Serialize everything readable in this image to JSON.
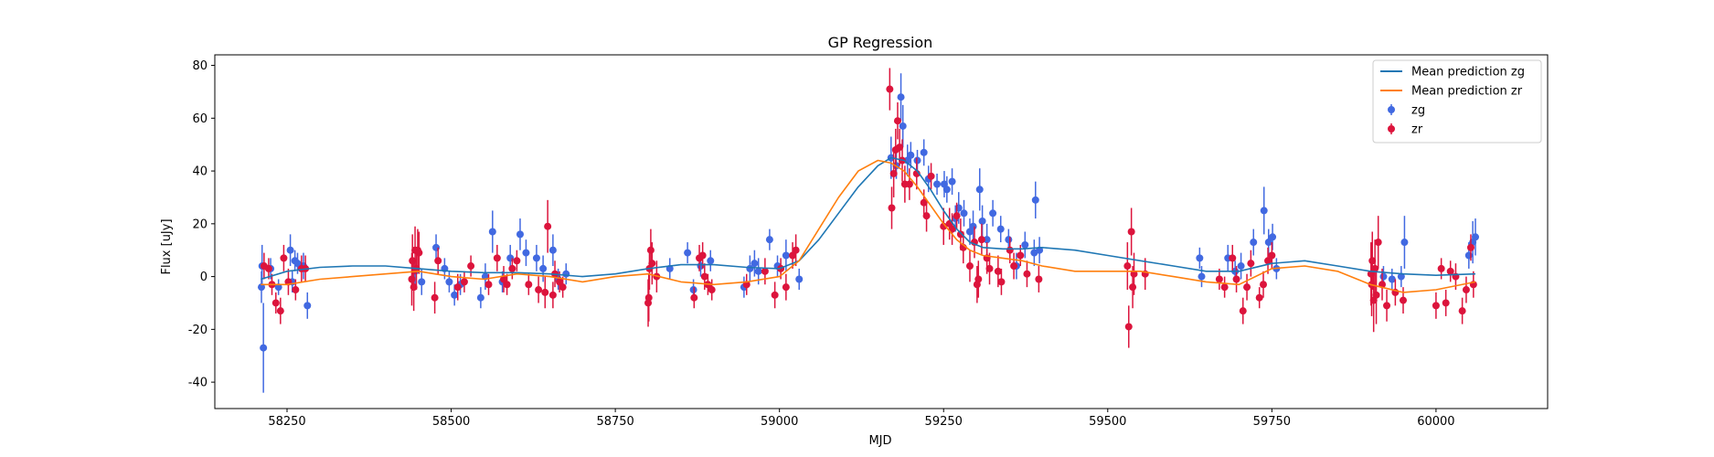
{
  "chart_data": {
    "type": "scatter",
    "title": "GP Regression",
    "xlabel": "MJD",
    "ylabel": "Flux [uJy]",
    "xlim": [
      58140,
      60170
    ],
    "ylim": [
      -50,
      84
    ],
    "xticks": [
      58250,
      58500,
      58750,
      59000,
      59250,
      59500,
      59750,
      60000
    ],
    "yticks": [
      -40,
      -20,
      0,
      20,
      40,
      60,
      80
    ],
    "legend_position": "top-right",
    "colors": {
      "zg_line": "#1f77b4",
      "zr_line": "#ff7f0e",
      "zg_points": "#4169e1",
      "zr_points": "#dc143c"
    },
    "lines": [
      {
        "name": "Mean prediction zg",
        "x": [
          58210,
          58250,
          58300,
          58350,
          58400,
          58450,
          58500,
          58550,
          58600,
          58650,
          58700,
          58750,
          58800,
          58850,
          58900,
          58950,
          59000,
          59030,
          59060,
          59090,
          59120,
          59150,
          59170,
          59190,
          59210,
          59230,
          59250,
          59270,
          59290,
          59310,
          59340,
          59370,
          59400,
          59450,
          59500,
          59550,
          59600,
          59650,
          59700,
          59750,
          59800,
          59850,
          59900,
          59950,
          60000,
          60060
        ],
        "y": [
          -1,
          2,
          3.5,
          4,
          4,
          3,
          2,
          1.5,
          1.5,
          1,
          0,
          1,
          3,
          4.5,
          4.5,
          3.5,
          3,
          6,
          14,
          24,
          34,
          42,
          45,
          44,
          40,
          33,
          25,
          18,
          13,
          11,
          10.5,
          10.5,
          11,
          10,
          8,
          6,
          4,
          2,
          2,
          5,
          6,
          4,
          2,
          1,
          0.5,
          1
        ]
      },
      {
        "name": "Mean prediction zr",
        "x": [
          58210,
          58250,
          58300,
          58350,
          58400,
          58450,
          58500,
          58550,
          58600,
          58650,
          58700,
          58750,
          58800,
          58850,
          58900,
          58950,
          59000,
          59030,
          59060,
          59090,
          59120,
          59150,
          59170,
          59190,
          59210,
          59230,
          59250,
          59270,
          59290,
          59310,
          59340,
          59370,
          59400,
          59450,
          59500,
          59550,
          59600,
          59650,
          59700,
          59750,
          59800,
          59850,
          59900,
          59950,
          60000,
          60060
        ],
        "y": [
          -3,
          -3,
          -1,
          0,
          1,
          2,
          0,
          -1,
          1,
          0,
          -2,
          0,
          1,
          -2,
          -3,
          -2,
          0,
          6,
          18,
          30,
          40,
          44,
          43,
          40,
          34,
          27,
          20,
          14,
          10,
          8,
          7,
          6,
          4,
          2,
          2,
          2,
          0,
          -2,
          -3,
          3,
          4,
          2,
          -3,
          -6,
          -5,
          -2
        ]
      }
    ],
    "series": [
      {
        "name": "zg",
        "points": [
          [
            58211,
            -4,
            6
          ],
          [
            58212,
            4,
            8
          ],
          [
            58214,
            -27,
            17
          ],
          [
            58225,
            3,
            4
          ],
          [
            58237,
            -4,
            3
          ],
          [
            58255,
            10,
            6
          ],
          [
            58258,
            -2,
            4
          ],
          [
            58262,
            6,
            4
          ],
          [
            58266,
            5,
            4
          ],
          [
            58275,
            4,
            5
          ],
          [
            58281,
            -11,
            5
          ],
          [
            58445,
            2,
            5
          ],
          [
            58455,
            -2,
            5
          ],
          [
            58477,
            11,
            5
          ],
          [
            58490,
            3,
            4
          ],
          [
            58497,
            -2,
            4
          ],
          [
            58505,
            -7,
            4
          ],
          [
            58514,
            -3,
            4
          ],
          [
            58545,
            -8,
            4
          ],
          [
            58552,
            0,
            5
          ],
          [
            58563,
            17,
            8
          ],
          [
            58578,
            -2,
            4
          ],
          [
            58590,
            7,
            5
          ],
          [
            58605,
            16,
            6
          ],
          [
            58614,
            9,
            5
          ],
          [
            58630,
            7,
            5
          ],
          [
            58640,
            3,
            5
          ],
          [
            58655,
            10,
            6
          ],
          [
            58663,
            -1,
            4
          ],
          [
            58675,
            1,
            4
          ],
          [
            58833,
            3,
            4
          ],
          [
            58860,
            9,
            4
          ],
          [
            58869,
            -5,
            4
          ],
          [
            58880,
            4,
            4
          ],
          [
            58895,
            6,
            4
          ],
          [
            58946,
            -4,
            4
          ],
          [
            58955,
            3,
            5
          ],
          [
            58962,
            5,
            5
          ],
          [
            58968,
            2,
            5
          ],
          [
            58985,
            14,
            4
          ],
          [
            58997,
            4,
            4
          ],
          [
            59010,
            8,
            6
          ],
          [
            59030,
            -1,
            4
          ],
          [
            59170,
            45,
            8
          ],
          [
            59178,
            42,
            5
          ],
          [
            59185,
            68,
            9
          ],
          [
            59188,
            57,
            8
          ],
          [
            59195,
            44,
            6
          ],
          [
            59200,
            46,
            5
          ],
          [
            59210,
            44,
            4
          ],
          [
            59220,
            47,
            5
          ],
          [
            59227,
            37,
            5
          ],
          [
            59240,
            35,
            4
          ],
          [
            59251,
            35,
            5
          ],
          [
            59255,
            33,
            5
          ],
          [
            59263,
            36,
            5
          ],
          [
            59268,
            22,
            5
          ],
          [
            59273,
            26,
            6
          ],
          [
            59281,
            24,
            5
          ],
          [
            59290,
            17,
            5
          ],
          [
            59295,
            19,
            6
          ],
          [
            59305,
            33,
            8
          ],
          [
            59309,
            21,
            6
          ],
          [
            59316,
            14,
            6
          ],
          [
            59325,
            24,
            5
          ],
          [
            59337,
            18,
            5
          ],
          [
            59349,
            14,
            4
          ],
          [
            59361,
            4,
            5
          ],
          [
            59374,
            12,
            5
          ],
          [
            59388,
            9,
            5
          ],
          [
            59390,
            29,
            7
          ],
          [
            59396,
            10,
            5
          ],
          [
            59640,
            7,
            4
          ],
          [
            59643,
            0,
            4
          ],
          [
            59683,
            7,
            5
          ],
          [
            59694,
            2,
            4
          ],
          [
            59703,
            4,
            5
          ],
          [
            59722,
            13,
            5
          ],
          [
            59738,
            25,
            9
          ],
          [
            59745,
            13,
            5
          ],
          [
            59751,
            15,
            5
          ],
          [
            59757,
            3,
            4
          ],
          [
            59920,
            0,
            4
          ],
          [
            59933,
            -1,
            4
          ],
          [
            59947,
            0,
            4
          ],
          [
            59952,
            13,
            10
          ],
          [
            60050,
            8,
            5
          ],
          [
            60056,
            13,
            8
          ],
          [
            60060,
            15,
            7
          ]
        ]
      },
      {
        "name": "zr",
        "points": [
          [
            58215,
            4,
            5
          ],
          [
            58222,
            3,
            4
          ],
          [
            58227,
            -3,
            4
          ],
          [
            58233,
            -10,
            4
          ],
          [
            58240,
            -13,
            5
          ],
          [
            58245,
            7,
            5
          ],
          [
            58252,
            -2,
            5
          ],
          [
            58263,
            -5,
            4
          ],
          [
            58272,
            3,
            5
          ],
          [
            58278,
            3,
            5
          ],
          [
            58440,
            -1,
            10
          ],
          [
            58441,
            6,
            10
          ],
          [
            58443,
            -4,
            9
          ],
          [
            58445,
            10,
            9
          ],
          [
            58447,
            3,
            8
          ],
          [
            58449,
            10,
            8
          ],
          [
            58451,
            9,
            8
          ],
          [
            58475,
            -8,
            6
          ],
          [
            58480,
            6,
            5
          ],
          [
            58510,
            -4,
            5
          ],
          [
            58520,
            -2,
            4
          ],
          [
            58530,
            4,
            4
          ],
          [
            58557,
            -3,
            4
          ],
          [
            58570,
            7,
            5
          ],
          [
            58580,
            -1,
            5
          ],
          [
            58585,
            -3,
            4
          ],
          [
            58593,
            3,
            4
          ],
          [
            58600,
            6,
            4
          ],
          [
            58618,
            -3,
            4
          ],
          [
            58633,
            -5,
            5
          ],
          [
            58643,
            -6,
            6
          ],
          [
            58647,
            19,
            10
          ],
          [
            58655,
            -7,
            5
          ],
          [
            58658,
            1,
            5
          ],
          [
            58665,
            -2,
            4
          ],
          [
            58670,
            -4,
            4
          ],
          [
            58800,
            -10,
            9
          ],
          [
            58801,
            -8,
            9
          ],
          [
            58802,
            3,
            8
          ],
          [
            58804,
            10,
            8
          ],
          [
            58806,
            5,
            8
          ],
          [
            58813,
            0,
            6
          ],
          [
            58870,
            -8,
            4
          ],
          [
            58878,
            7,
            5
          ],
          [
            58883,
            8,
            5
          ],
          [
            58886,
            0,
            5
          ],
          [
            58891,
            -3,
            4
          ],
          [
            58897,
            -5,
            4
          ],
          [
            58950,
            -3,
            4
          ],
          [
            58978,
            2,
            5
          ],
          [
            58993,
            -7,
            5
          ],
          [
            59002,
            3,
            4
          ],
          [
            59010,
            -4,
            5
          ],
          [
            59020,
            8,
            5
          ],
          [
            59025,
            10,
            6
          ],
          [
            59168,
            71,
            8
          ],
          [
            59171,
            26,
            8
          ],
          [
            59174,
            39,
            9
          ],
          [
            59177,
            48,
            8
          ],
          [
            59180,
            59,
            7
          ],
          [
            59183,
            49,
            7
          ],
          [
            59187,
            44,
            8
          ],
          [
            59191,
            35,
            7
          ],
          [
            59198,
            35,
            6
          ],
          [
            59209,
            39,
            6
          ],
          [
            59220,
            28,
            5
          ],
          [
            59224,
            23,
            6
          ],
          [
            59231,
            38,
            5
          ],
          [
            59250,
            19,
            7
          ],
          [
            59259,
            20,
            6
          ],
          [
            59263,
            18,
            6
          ],
          [
            59270,
            23,
            5
          ],
          [
            59276,
            16,
            6
          ],
          [
            59280,
            11,
            6
          ],
          [
            59290,
            4,
            6
          ],
          [
            59297,
            13,
            6
          ],
          [
            59301,
            -3,
            7
          ],
          [
            59303,
            -1,
            7
          ],
          [
            59308,
            14,
            6
          ],
          [
            59316,
            7,
            6
          ],
          [
            59320,
            3,
            6
          ],
          [
            59333,
            2,
            6
          ],
          [
            59338,
            -2,
            5
          ],
          [
            59351,
            10,
            5
          ],
          [
            59357,
            4,
            5
          ],
          [
            59367,
            8,
            4
          ],
          [
            59377,
            1,
            5
          ],
          [
            59395,
            -1,
            5
          ],
          [
            59530,
            4,
            9
          ],
          [
            59532,
            -19,
            8
          ],
          [
            59536,
            17,
            9
          ],
          [
            59538,
            -4,
            8
          ],
          [
            59540,
            1,
            8
          ],
          [
            59557,
            1,
            6
          ],
          [
            59670,
            -1,
            4
          ],
          [
            59678,
            -4,
            4
          ],
          [
            59690,
            7,
            5
          ],
          [
            59696,
            -1,
            5
          ],
          [
            59706,
            -13,
            5
          ],
          [
            59712,
            -4,
            5
          ],
          [
            59718,
            5,
            5
          ],
          [
            59731,
            -8,
            4
          ],
          [
            59737,
            -3,
            5
          ],
          [
            59744,
            6,
            5
          ],
          [
            59750,
            8,
            5
          ],
          [
            59901,
            1,
            12
          ],
          [
            59902,
            -3,
            12
          ],
          [
            59903,
            6,
            11
          ],
          [
            59905,
            -9,
            12
          ],
          [
            59907,
            3,
            11
          ],
          [
            59909,
            -7,
            11
          ],
          [
            59912,
            13,
            10
          ],
          [
            59918,
            -3,
            6
          ],
          [
            59925,
            -11,
            6
          ],
          [
            59938,
            -6,
            5
          ],
          [
            59950,
            -9,
            5
          ],
          [
            60000,
            -11,
            5
          ],
          [
            60015,
            -10,
            5
          ],
          [
            60030,
            0,
            5
          ],
          [
            60040,
            -13,
            5
          ],
          [
            60046,
            -5,
            5
          ],
          [
            60053,
            11,
            5
          ],
          [
            60057,
            -3,
            5
          ],
          [
            60022,
            2,
            4
          ],
          [
            60008,
            3,
            4
          ]
        ]
      }
    ]
  }
}
